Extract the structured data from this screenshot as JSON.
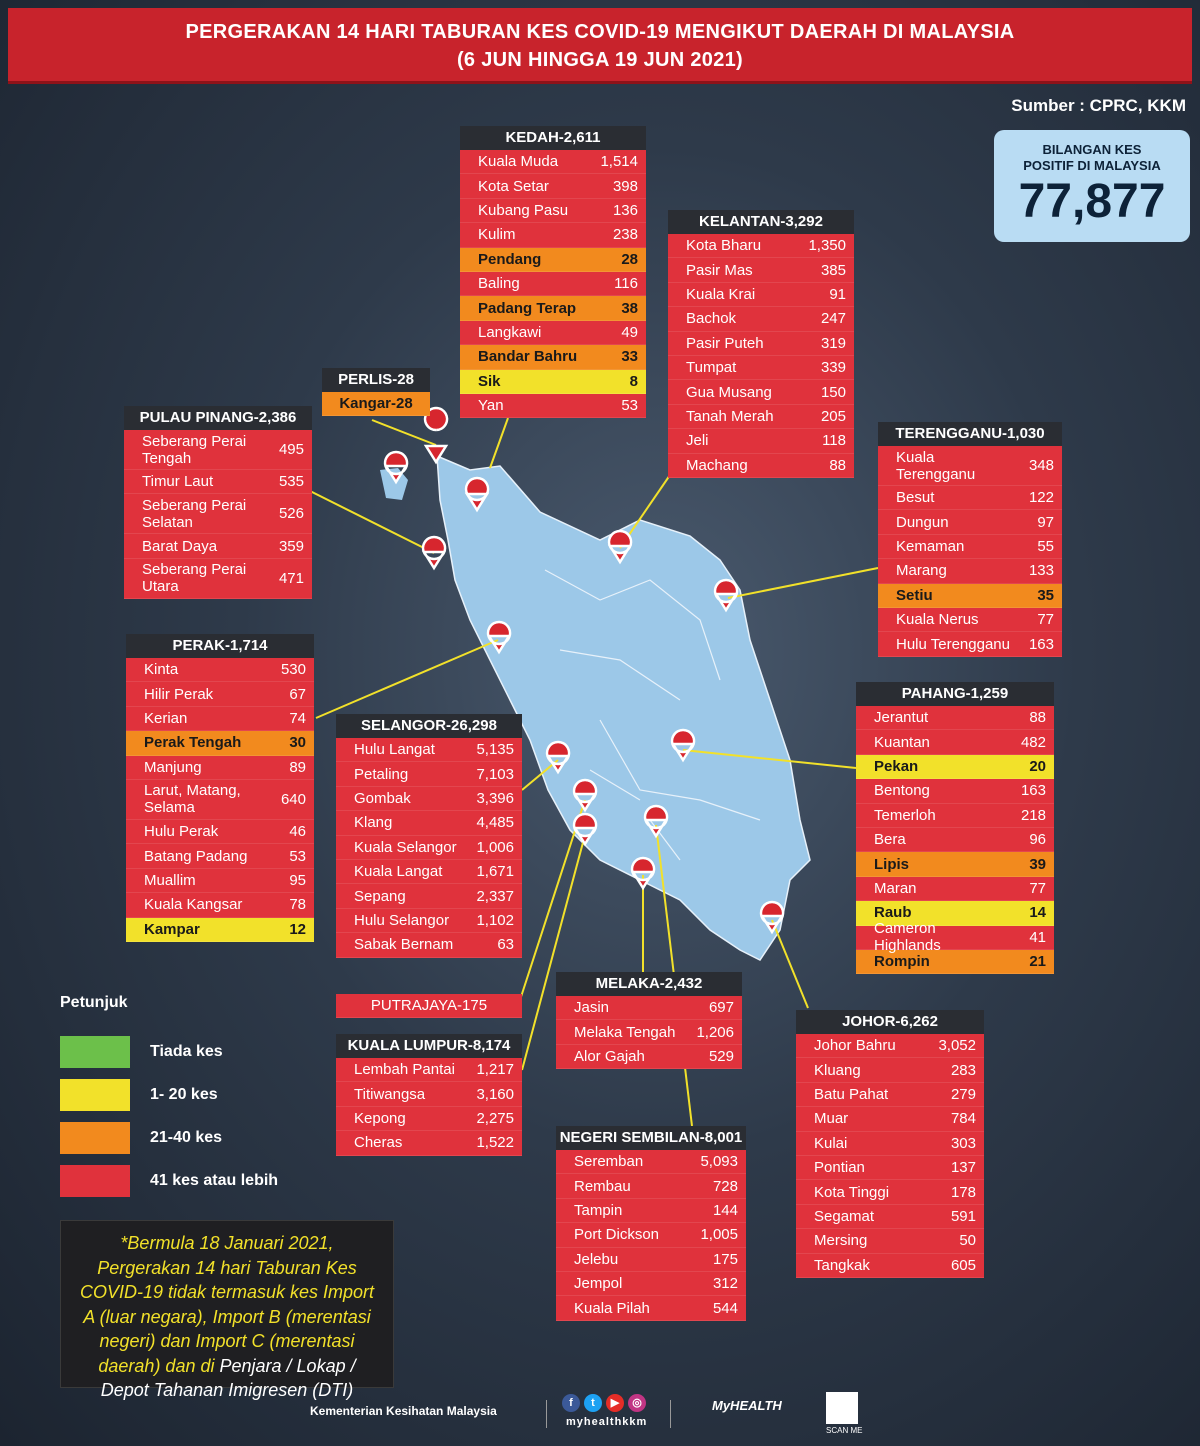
{
  "title": {
    "line1": "PERGERAKAN 14 HARI TABURAN KES COVID-19 MENGIKUT DAERAH DI MALAYSIA",
    "line2": "(6 JUN HINGGA 19 JUN 2021)"
  },
  "source": "Sumber : CPRC, KKM",
  "total": {
    "label_line1": "BILANGAN KES",
    "label_line2": "POSITIF DI MALAYSIA",
    "value": "77,877"
  },
  "colors": {
    "none": "#6cc04a",
    "low": "#f2e12a",
    "mid": "#f28a1e",
    "high": "#e0323c"
  },
  "states": {
    "kedah": {
      "title": "KEDAH-2,611",
      "rows": [
        {
          "name": "Kuala Muda",
          "value": "1,514",
          "level": "high"
        },
        {
          "name": "Kota Setar",
          "value": "398",
          "level": "high"
        },
        {
          "name": "Kubang Pasu",
          "value": "136",
          "level": "high"
        },
        {
          "name": "Kulim",
          "value": "238",
          "level": "high"
        },
        {
          "name": "Pendang",
          "value": "28",
          "level": "mid"
        },
        {
          "name": "Baling",
          "value": "116",
          "level": "high"
        },
        {
          "name": "Padang Terap",
          "value": "38",
          "level": "mid"
        },
        {
          "name": "Langkawi",
          "value": "49",
          "level": "high"
        },
        {
          "name": "Bandar Bahru",
          "value": "33",
          "level": "mid"
        },
        {
          "name": "Sik",
          "value": "8",
          "level": "low"
        },
        {
          "name": "Yan",
          "value": "53",
          "level": "high"
        }
      ]
    },
    "kelantan": {
      "title": "KELANTAN-3,292",
      "rows": [
        {
          "name": "Kota Bharu",
          "value": "1,350",
          "level": "high"
        },
        {
          "name": "Pasir Mas",
          "value": "385",
          "level": "high"
        },
        {
          "name": "Kuala Krai",
          "value": "91",
          "level": "high"
        },
        {
          "name": "Bachok",
          "value": "247",
          "level": "high"
        },
        {
          "name": "Pasir Puteh",
          "value": "319",
          "level": "high"
        },
        {
          "name": "Tumpat",
          "value": "339",
          "level": "high"
        },
        {
          "name": "Gua Musang",
          "value": "150",
          "level": "high"
        },
        {
          "name": "Tanah Merah",
          "value": "205",
          "level": "high"
        },
        {
          "name": "Jeli",
          "value": "118",
          "level": "high"
        },
        {
          "name": "Machang",
          "value": "88",
          "level": "high"
        }
      ]
    },
    "perlis": {
      "title": "PERLIS-28",
      "rows": [
        {
          "name": "Kangar-28",
          "value": "",
          "level": "mid"
        }
      ]
    },
    "pinang": {
      "title": "PULAU PINANG-2,386",
      "rows": [
        {
          "name": "Seberang Perai Tengah",
          "value": "495",
          "level": "high",
          "tall": true
        },
        {
          "name": "Timur Laut",
          "value": "535",
          "level": "high"
        },
        {
          "name": "Seberang Perai Selatan",
          "value": "526",
          "level": "high",
          "tall": true
        },
        {
          "name": "Barat Daya",
          "value": "359",
          "level": "high"
        },
        {
          "name": "Seberang Perai Utara",
          "value": "471",
          "level": "high",
          "tall": true
        }
      ]
    },
    "terengganu": {
      "title": "TERENGGANU-1,030",
      "rows": [
        {
          "name": "Kuala Terengganu",
          "value": "348",
          "level": "high",
          "tall": true
        },
        {
          "name": "Besut",
          "value": "122",
          "level": "high"
        },
        {
          "name": "Dungun",
          "value": "97",
          "level": "high"
        },
        {
          "name": "Kemaman",
          "value": "55",
          "level": "high"
        },
        {
          "name": "Marang",
          "value": "133",
          "level": "high"
        },
        {
          "name": "Setiu",
          "value": "35",
          "level": "mid"
        },
        {
          "name": "Kuala Nerus",
          "value": "77",
          "level": "high"
        },
        {
          "name": "Hulu Terengganu",
          "value": "163",
          "level": "high"
        }
      ]
    },
    "perak": {
      "title": "PERAK-1,714",
      "rows": [
        {
          "name": "Kinta",
          "value": "530",
          "level": "high"
        },
        {
          "name": "Hilir Perak",
          "value": "67",
          "level": "high"
        },
        {
          "name": "Kerian",
          "value": "74",
          "level": "high"
        },
        {
          "name": "Perak Tengah",
          "value": "30",
          "level": "mid"
        },
        {
          "name": "Manjung",
          "value": "89",
          "level": "high"
        },
        {
          "name": "Larut, Matang, Selama",
          "value": "640",
          "level": "high",
          "tall": true
        },
        {
          "name": "Hulu Perak",
          "value": "46",
          "level": "high"
        },
        {
          "name": "Batang Padang",
          "value": "53",
          "level": "high"
        },
        {
          "name": "Muallim",
          "value": "95",
          "level": "high"
        },
        {
          "name": "Kuala Kangsar",
          "value": "78",
          "level": "high"
        },
        {
          "name": "Kampar",
          "value": "12",
          "level": "low"
        }
      ]
    },
    "selangor": {
      "title": "SELANGOR-26,298",
      "rows": [
        {
          "name": "Hulu Langat",
          "value": "5,135",
          "level": "high"
        },
        {
          "name": "Petaling",
          "value": "7,103",
          "level": "high"
        },
        {
          "name": "Gombak",
          "value": "3,396",
          "level": "high"
        },
        {
          "name": "Klang",
          "value": "4,485",
          "level": "high"
        },
        {
          "name": "Kuala Selangor",
          "value": "1,006",
          "level": "high"
        },
        {
          "name": "Kuala Langat",
          "value": "1,671",
          "level": "high"
        },
        {
          "name": "Sepang",
          "value": "2,337",
          "level": "high"
        },
        {
          "name": "Hulu Selangor",
          "value": "1,102",
          "level": "high"
        },
        {
          "name": "Sabak Bernam",
          "value": "63",
          "level": "high"
        }
      ]
    },
    "pahang": {
      "title": "PAHANG-1,259",
      "rows": [
        {
          "name": "Jerantut",
          "value": "88",
          "level": "high"
        },
        {
          "name": "Kuantan",
          "value": "482",
          "level": "high"
        },
        {
          "name": "Pekan",
          "value": "20",
          "level": "low"
        },
        {
          "name": "Bentong",
          "value": "163",
          "level": "high"
        },
        {
          "name": "Temerloh",
          "value": "218",
          "level": "high"
        },
        {
          "name": "Bera",
          "value": "96",
          "level": "high"
        },
        {
          "name": "Lipis",
          "value": "39",
          "level": "mid"
        },
        {
          "name": "Maran",
          "value": "77",
          "level": "high"
        },
        {
          "name": "Raub",
          "value": "14",
          "level": "low"
        },
        {
          "name": "Cameron Highlands",
          "value": "41",
          "level": "high"
        },
        {
          "name": "Rompin",
          "value": "21",
          "level": "mid"
        }
      ]
    },
    "putrajaya": {
      "label": "PUTRAJAYA-175"
    },
    "kl": {
      "title": "KUALA LUMPUR-8,174",
      "rows": [
        {
          "name": "Lembah Pantai",
          "value": "1,217",
          "level": "high"
        },
        {
          "name": "Titiwangsa",
          "value": "3,160",
          "level": "high"
        },
        {
          "name": "Kepong",
          "value": "2,275",
          "level": "high"
        },
        {
          "name": "Cheras",
          "value": "1,522",
          "level": "high"
        }
      ]
    },
    "melaka": {
      "title": "MELAKA-2,432",
      "rows": [
        {
          "name": "Jasin",
          "value": "697",
          "level": "high"
        },
        {
          "name": "Melaka Tengah",
          "value": "1,206",
          "level": "high"
        },
        {
          "name": "Alor Gajah",
          "value": "529",
          "level": "high"
        }
      ]
    },
    "ns": {
      "title": "NEGERI SEMBILAN-8,001",
      "rows": [
        {
          "name": "Seremban",
          "value": "5,093",
          "level": "high"
        },
        {
          "name": "Rembau",
          "value": "728",
          "level": "high"
        },
        {
          "name": "Tampin",
          "value": "144",
          "level": "high"
        },
        {
          "name": "Port Dickson",
          "value": "1,005",
          "level": "high"
        },
        {
          "name": "Jelebu",
          "value": "175",
          "level": "high"
        },
        {
          "name": "Jempol",
          "value": "312",
          "level": "high"
        },
        {
          "name": "Kuala Pilah",
          "value": "544",
          "level": "high"
        }
      ]
    },
    "johor": {
      "title": "JOHOR-6,262",
      "rows": [
        {
          "name": "Johor Bahru",
          "value": "3,052",
          "level": "high"
        },
        {
          "name": "Kluang",
          "value": "283",
          "level": "high"
        },
        {
          "name": "Batu Pahat",
          "value": "279",
          "level": "high"
        },
        {
          "name": "Muar",
          "value": "784",
          "level": "high"
        },
        {
          "name": "Kulai",
          "value": "303",
          "level": "high"
        },
        {
          "name": "Pontian",
          "value": "137",
          "level": "high"
        },
        {
          "name": "Kota Tinggi",
          "value": "178",
          "level": "high"
        },
        {
          "name": "Segamat",
          "value": "591",
          "level": "high"
        },
        {
          "name": "Mersing",
          "value": "50",
          "level": "high"
        },
        {
          "name": "Tangkak",
          "value": "605",
          "level": "high"
        }
      ]
    }
  },
  "legend": {
    "title": "Petunjuk",
    "items": [
      {
        "label": "Tiada kes",
        "level": "none"
      },
      {
        "label": "1- 20 kes",
        "level": "low"
      },
      {
        "label": "21-40 kes",
        "level": "mid"
      },
      {
        "label": "41 kes atau lebih",
        "level": "high"
      }
    ]
  },
  "note": {
    "part1": "*Bermula 18 Januari 2021, Pergerakan 14 hari Taburan Kes COVID-19 tidak termasuk kes Import A (luar negara), Import B (merentasi negeri) dan Import C (merentasi daerah) dan di",
    "part2": "Penjara / Lokap / Depot Tahanan Imigresen (DTI)"
  },
  "footer": {
    "ministry": "Kementerian Kesihatan Malaysia",
    "handle": "myhealthkkm",
    "brand": "MyHEALTH",
    "scan": "SCAN ME"
  }
}
